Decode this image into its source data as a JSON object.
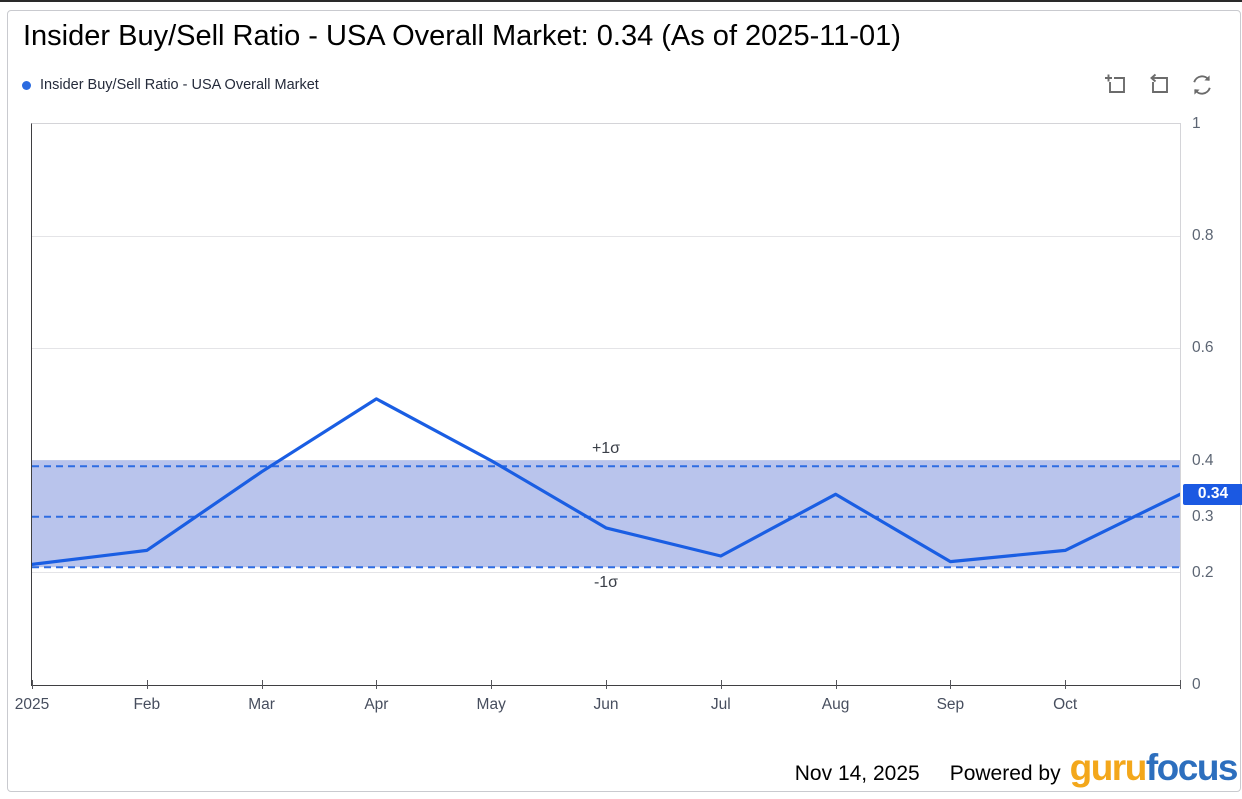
{
  "title": "Insider Buy/Sell Ratio - USA Overall Market: 0.34 (As of 2025-11-01)",
  "legend": {
    "label": "Insider Buy/Sell Ratio - USA Overall Market",
    "marker_color": "#2b6be0"
  },
  "toolbar": {
    "icons": [
      "zoom-selection-icon",
      "restore-zoom-icon",
      "refresh-icon"
    ]
  },
  "chart_data": {
    "type": "line",
    "title": "Insider Buy/Sell Ratio - USA Overall Market: 0.34 (As of 2025-11-01)",
    "series": [
      {
        "name": "Insider Buy/Sell Ratio - USA Overall Market",
        "color": "#1a5ee3",
        "x": [
          "2025-01",
          "2025-02",
          "2025-03",
          "2025-04",
          "2025-05",
          "2025-06",
          "2025-07",
          "2025-08",
          "2025-09",
          "2025-10",
          "2025-11"
        ],
        "values": [
          0.215,
          0.24,
          0.38,
          0.51,
          0.4,
          0.28,
          0.23,
          0.34,
          0.22,
          0.24,
          0.34
        ]
      }
    ],
    "x_axis": {
      "tick_labels": [
        "2025",
        "Feb",
        "Mar",
        "Apr",
        "May",
        "Jun",
        "Jul",
        "Aug",
        "Sep",
        "Oct"
      ]
    },
    "y_axis": {
      "range": [
        0,
        1
      ],
      "ticks": [
        0,
        0.2,
        0.3,
        0.4,
        0.6,
        0.8,
        1
      ],
      "current_value": 0.34,
      "current_value_label": "0.34",
      "current_value_color": "#1b59e2"
    },
    "bands": {
      "upper_sigma": 0.39,
      "mean": 0.3,
      "lower_sigma": 0.21,
      "upper_label": "+1σ",
      "lower_label": "-1σ",
      "fill_color": "#b9c4ec",
      "line_color": "#2e6ce2"
    },
    "grid": "horizontal-only",
    "legend_position": "top-left"
  },
  "footer": {
    "date": "Nov 14, 2025",
    "powered_by": "Powered by",
    "logo": {
      "guru": "guru",
      "focus": "focus",
      "guru_color": "#f3a71b",
      "focus_color": "#2d6fbe"
    }
  }
}
